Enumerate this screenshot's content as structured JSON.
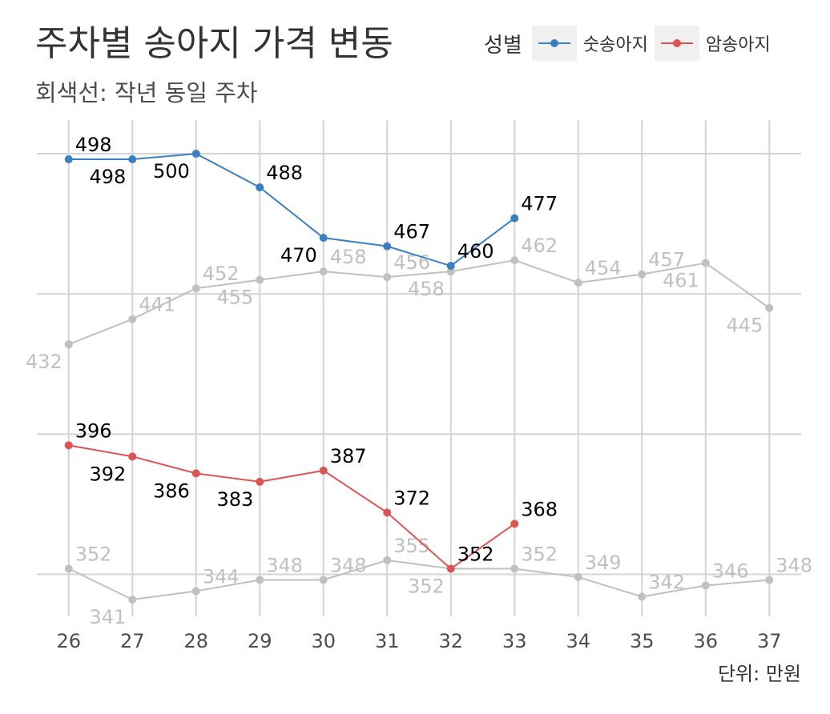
{
  "title": "주차별 송아지 가격 변동",
  "subtitle": "회색선: 작년 동일 주차",
  "caption": "단위: 만원",
  "legend": {
    "title": "성별",
    "items": [
      "숫송아지",
      "암송아지"
    ]
  },
  "colors": {
    "male": "#3a7fc1",
    "female": "#dc5452",
    "last_year": "#c0c0c0",
    "grid": "#d4d4d4",
    "label": "#000000"
  },
  "chart_data": {
    "type": "line",
    "x": [
      26,
      27,
      28,
      29,
      30,
      31,
      32,
      33,
      34,
      35,
      36,
      37
    ],
    "series": [
      {
        "name": "숫송아지",
        "x": [
          26,
          27,
          28,
          29,
          30,
          31,
          32,
          33
        ],
        "values": [
          498,
          498,
          500,
          488,
          470,
          467,
          460,
          477
        ]
      },
      {
        "name": "암송아지",
        "x": [
          26,
          27,
          28,
          29,
          30,
          31,
          32,
          33
        ],
        "values": [
          396,
          392,
          386,
          383,
          387,
          372,
          352,
          368
        ]
      },
      {
        "x": [
          26,
          27,
          28,
          29,
          30,
          31,
          32,
          33,
          34,
          35,
          36,
          37
        ],
        "values": [
          432,
          441,
          452,
          455,
          458,
          456,
          458,
          462,
          454,
          457,
          461,
          445
        ]
      },
      {
        "x": [
          26,
          27,
          28,
          29,
          30,
          31,
          32,
          33,
          34,
          35,
          36,
          37
        ],
        "values": [
          352,
          341,
          344,
          348,
          348,
          355,
          352,
          352,
          349,
          342,
          346,
          348
        ]
      }
    ],
    "xlim": [
      25.5,
      37.5
    ],
    "ylim": [
      335,
      512
    ],
    "grid": true,
    "legend_position": "top-right",
    "y_ticks_hidden": true
  }
}
